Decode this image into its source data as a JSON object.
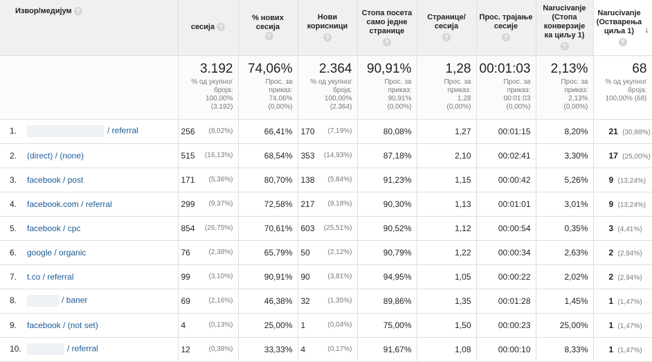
{
  "headers": {
    "source": "Извор/медијум",
    "sessions": "сесија",
    "new_sessions": "% нових сесија",
    "new_users": "Нови корисници",
    "bounce_rate": "Стопа посета само једне странице",
    "pages_per_session": "Странице/ сесија",
    "avg_duration": "Прос. трајање сесије",
    "conv_rate": "Narucivanje (Стопа конверзије ка циљу 1)",
    "completions": "Narucivanje (Остварења циља 1)"
  },
  "summary": {
    "sessions": {
      "value": "3.192",
      "sub1": "% од укупног броја:",
      "sub2": "100,00%",
      "sub3": "(3.192)"
    },
    "new_sessions": {
      "value": "74,06%",
      "sub1": "Прос. за приказ:",
      "sub2": "74,06%",
      "sub3": "(0,00%)"
    },
    "new_users": {
      "value": "2.364",
      "sub1": "% од укупног броја:",
      "sub2": "100,00%",
      "sub3": "(2.364)"
    },
    "bounce_rate": {
      "value": "90,91%",
      "sub1": "Прос. за приказ:",
      "sub2": "90,91%",
      "sub3": "(0,00%)"
    },
    "pages_per_session": {
      "value": "1,28",
      "sub1": "Прос. за приказ:",
      "sub2": "1,28",
      "sub3": "(0,00%)"
    },
    "avg_duration": {
      "value": "00:01:03",
      "sub1": "Прос. за приказ:",
      "sub2": "00:01:03",
      "sub3": "(0,00%)"
    },
    "conv_rate": {
      "value": "2,13%",
      "sub1": "Прос. за приказ:",
      "sub2": "2,13%",
      "sub3": "(0,00%)"
    },
    "completions": {
      "value": "68",
      "sub1": "% од укупног броја:",
      "sub2": "100,00% (68)",
      "sub3": ""
    }
  },
  "rows": [
    {
      "index": "1.",
      "source": "/ referral",
      "sessions": "256",
      "sessions_pct": "(8,02%)",
      "new_sessions": "66,41%",
      "new_users": "170",
      "new_users_pct": "(7,19%)",
      "bounce": "80,08%",
      "pages": "1,27",
      "duration": "00:01:15",
      "conv": "8,20%",
      "completions": "21",
      "completions_pct": "(30,88%)"
    },
    {
      "index": "2.",
      "source": "(direct) / (none)",
      "sessions": "515",
      "sessions_pct": "(16,13%)",
      "new_sessions": "68,54%",
      "new_users": "353",
      "new_users_pct": "(14,93%)",
      "bounce": "87,18%",
      "pages": "2,10",
      "duration": "00:02:41",
      "conv": "3,30%",
      "completions": "17",
      "completions_pct": "(25,00%)"
    },
    {
      "index": "3.",
      "source": "facebook / post",
      "sessions": "171",
      "sessions_pct": "(5,36%)",
      "new_sessions": "80,70%",
      "new_users": "138",
      "new_users_pct": "(5,84%)",
      "bounce": "91,23%",
      "pages": "1,15",
      "duration": "00:00:42",
      "conv": "5,26%",
      "completions": "9",
      "completions_pct": "(13,24%)"
    },
    {
      "index": "4.",
      "source": "facebook.com / referral",
      "sessions": "299",
      "sessions_pct": "(9,37%)",
      "new_sessions": "72,58%",
      "new_users": "217",
      "new_users_pct": "(9,18%)",
      "bounce": "90,30%",
      "pages": "1,13",
      "duration": "00:01:01",
      "conv": "3,01%",
      "completions": "9",
      "completions_pct": "(13,24%)"
    },
    {
      "index": "5.",
      "source": "facebook / cpc",
      "sessions": "854",
      "sessions_pct": "(26,75%)",
      "new_sessions": "70,61%",
      "new_users": "603",
      "new_users_pct": "(25,51%)",
      "bounce": "90,52%",
      "pages": "1,12",
      "duration": "00:00:54",
      "conv": "0,35%",
      "completions": "3",
      "completions_pct": "(4,41%)"
    },
    {
      "index": "6.",
      "source": "google / organic",
      "sessions": "76",
      "sessions_pct": "(2,38%)",
      "new_sessions": "65,79%",
      "new_users": "50",
      "new_users_pct": "(2,12%)",
      "bounce": "90,79%",
      "pages": "1,22",
      "duration": "00:00:34",
      "conv": "2,63%",
      "completions": "2",
      "completions_pct": "(2,94%)"
    },
    {
      "index": "7.",
      "source": "t.co / referral",
      "sessions": "99",
      "sessions_pct": "(3,10%)",
      "new_sessions": "90,91%",
      "new_users": "90",
      "new_users_pct": "(3,81%)",
      "bounce": "94,95%",
      "pages": "1,05",
      "duration": "00:00:22",
      "conv": "2,02%",
      "completions": "2",
      "completions_pct": "(2,94%)"
    },
    {
      "index": "8.",
      "source": "/ baner",
      "sessions": "69",
      "sessions_pct": "(2,16%)",
      "new_sessions": "46,38%",
      "new_users": "32",
      "new_users_pct": "(1,35%)",
      "bounce": "89,86%",
      "pages": "1,35",
      "duration": "00:01:28",
      "conv": "1,45%",
      "completions": "1",
      "completions_pct": "(1,47%)"
    },
    {
      "index": "9.",
      "source": "facebook / (not set)",
      "sessions": "4",
      "sessions_pct": "(0,13%)",
      "new_sessions": "25,00%",
      "new_users": "1",
      "new_users_pct": "(0,04%)",
      "bounce": "75,00%",
      "pages": "1,50",
      "duration": "00:00:23",
      "conv": "25,00%",
      "completions": "1",
      "completions_pct": "(1,47%)"
    },
    {
      "index": "10.",
      "source": "/ referral",
      "sessions": "12",
      "sessions_pct": "(0,38%)",
      "new_sessions": "33,33%",
      "new_users": "4",
      "new_users_pct": "(0,17%)",
      "bounce": "91,67%",
      "pages": "1,08",
      "duration": "00:00:10",
      "conv": "8,33%",
      "completions": "1",
      "completions_pct": "(1,47%)"
    }
  ],
  "icons": {
    "help": "question-mark-icon",
    "sort": "sort-descending-arrow-icon"
  },
  "colors": {
    "link": "#1a5a96",
    "header_bg": "#f0f0f0",
    "grid": "#dedede"
  }
}
